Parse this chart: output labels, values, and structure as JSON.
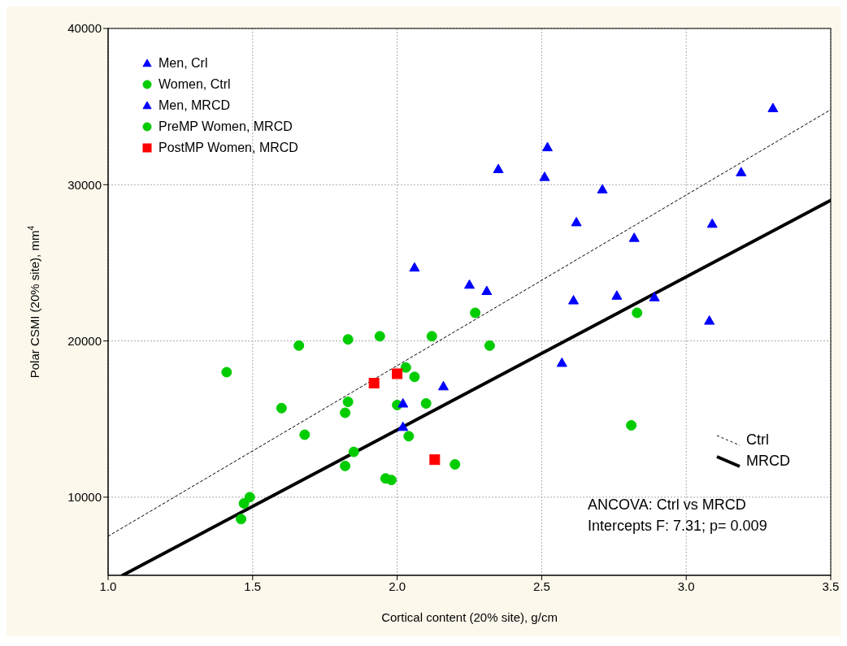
{
  "chart_data": {
    "type": "scatter",
    "xlabel": "Cortical content (20% site), g/cm",
    "ylabel": "Polar CSMI (20% site), mm$^{4}$",
    "xlim": [
      1.0,
      3.5
    ],
    "xticks": [
      {
        "value": 1.0,
        "label": "1.0"
      },
      {
        "value": 1.5,
        "label": "1.5"
      },
      {
        "value": 2.0,
        "label": "2.0"
      },
      {
        "value": 2.5,
        "label": "2.5"
      },
      {
        "value": 3.0,
        "label": "3.0"
      },
      {
        "value": 3.5,
        "label": "3.5"
      }
    ],
    "ylim": [
      5000,
      40000
    ],
    "yticks": [
      10000,
      20000,
      30000,
      40000
    ],
    "grid": true,
    "legend": "top left",
    "annotations": [
      "ANCOVA: Ctrl vs MRCD",
      "Intercepts F: 7.31; p= 0.009"
    ],
    "series": [
      {
        "name": "Men, Crl",
        "color": "#0000ff",
        "marker": "triangle",
        "x": [
          3.3,
          2.52,
          2.35,
          2.51,
          3.19,
          2.71,
          2.62,
          3.09,
          2.82,
          2.06,
          2.25,
          2.31,
          2.61,
          2.89,
          3.08
        ],
        "values": [
          34900,
          32400,
          31000,
          30500,
          30800,
          29700,
          27600,
          27500,
          26600,
          24700,
          23600,
          23200,
          22600,
          22800,
          21300
        ]
      },
      {
        "name": "Women, Ctrl",
        "color": "#00cc00",
        "marker": "circle",
        "x": [
          1.41,
          1.66,
          1.83,
          1.94,
          2.12,
          2.27,
          2.83,
          2.32,
          1.6,
          1.82,
          1.83,
          1.68,
          2.03,
          2.06,
          2.0,
          2.1,
          2.04,
          1.82,
          2.2,
          1.47,
          1.49,
          2.81
        ],
        "values": [
          18000,
          19700,
          20100,
          20300,
          20300,
          21800,
          21800,
          19700,
          15700,
          15400,
          16100,
          14000,
          18300,
          17700,
          15900,
          16000,
          13900,
          12000,
          12100,
          9600,
          10000,
          14600
        ]
      },
      {
        "name": "Men, MRCD",
        "color": "#0000ff",
        "marker": "triangle",
        "x": [
          2.02,
          2.02,
          2.16,
          2.57,
          2.76
        ],
        "values": [
          16000,
          14500,
          17100,
          18600,
          22900
        ]
      },
      {
        "name": "PreMP Women, MRCD",
        "color": "#00cc00",
        "marker": "circle",
        "x": [
          1.46,
          1.85,
          1.96,
          1.98
        ],
        "values": [
          8600,
          12900,
          11200,
          11100
        ]
      },
      {
        "name": "PostMP Women, MRCD",
        "color": "#ff0000",
        "marker": "square",
        "x": [
          1.92,
          2.0,
          2.13
        ],
        "values": [
          17300,
          17900,
          12400
        ]
      },
      {
        "name": "Ctrl",
        "type": "line",
        "color": "#000000",
        "line_style": "dashed",
        "x": [
          1.0,
          3.5
        ],
        "values": [
          7500,
          34800
        ]
      },
      {
        "name": "MRCD",
        "type": "line",
        "color": "#000000",
        "line_style": "solid",
        "x": [
          1.05,
          3.5
        ],
        "values": [
          5000,
          29000
        ]
      }
    ]
  }
}
